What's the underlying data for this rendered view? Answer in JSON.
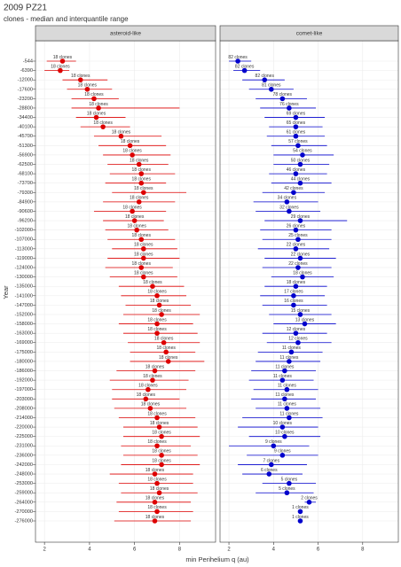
{
  "chart_data": {
    "type": "dot-range",
    "title": "2009 PZ21",
    "subtitle": "clones - median and interquantile range",
    "xlabel": "min Perihelium q (au)",
    "ylabel": "Year",
    "xlim": [
      1.6,
      9.6
    ],
    "xticks": [
      2,
      4,
      6,
      8
    ],
    "grid": true,
    "categories": [
      "-544",
      "-6390",
      "-12000",
      "-17600",
      "-23200",
      "-28800",
      "-34400",
      "-40100",
      "-45700",
      "-51300",
      "-56900",
      "-62500",
      "-68100",
      "-73700",
      "-79300",
      "-84900",
      "-90600",
      "-96200",
      "-102000",
      "-107000",
      "-113000",
      "-119000",
      "-124000",
      "-130000",
      "-135000",
      "-141000",
      "-147000",
      "-152000",
      "-158000",
      "-163000",
      "-169000",
      "-175000",
      "-180000",
      "-186000",
      "-192000",
      "-197000",
      "-203000",
      "-208000",
      "-214000",
      "-220000",
      "-225000",
      "-231000",
      "-236000",
      "-242000",
      "-248000",
      "-253000",
      "-259000",
      "-264000",
      "-270000",
      "-276000"
    ],
    "panels": [
      {
        "name": "asteroid-like",
        "color": "#dd0000",
        "median": [
          2.8,
          2.7,
          3.6,
          3.9,
          4.2,
          4.4,
          4.3,
          4.6,
          5.4,
          5.8,
          5.9,
          6.2,
          6.3,
          6.3,
          6.4,
          6.2,
          5.9,
          6.0,
          6.1,
          6.3,
          6.4,
          6.4,
          6.3,
          6.4,
          6.8,
          7.0,
          7.1,
          7.2,
          7.0,
          7.0,
          7.3,
          7.4,
          7.5,
          6.9,
          6.8,
          6.6,
          6.5,
          6.7,
          7.0,
          7.1,
          7.2,
          7.0,
          7.2,
          7.2,
          6.9,
          7.0,
          7.1,
          6.9,
          7.0,
          6.9
        ],
        "lo": [
          2.1,
          2.0,
          2.8,
          3.0,
          3.2,
          3.2,
          3.4,
          3.6,
          4.2,
          4.4,
          4.6,
          4.8,
          4.9,
          4.7,
          5.0,
          4.6,
          4.2,
          4.6,
          4.7,
          4.8,
          5.0,
          4.8,
          4.7,
          4.9,
          5.3,
          5.4,
          5.6,
          5.5,
          5.3,
          5.5,
          5.7,
          5.8,
          5.8,
          5.2,
          4.9,
          5.0,
          5.0,
          5.1,
          5.3,
          5.5,
          5.5,
          5.4,
          5.5,
          5.4,
          4.9,
          5.3,
          5.4,
          5.2,
          5.3,
          5.1
        ],
        "hi": [
          3.4,
          3.1,
          4.8,
          5.0,
          5.3,
          8.0,
          5.6,
          5.8,
          7.2,
          7.4,
          7.6,
          7.5,
          7.8,
          7.4,
          8.3,
          7.8,
          7.4,
          7.3,
          7.5,
          7.8,
          7.9,
          8.0,
          7.7,
          7.9,
          8.2,
          8.3,
          8.5,
          8.9,
          8.6,
          8.8,
          8.9,
          8.7,
          9.1,
          8.7,
          8.4,
          8.3,
          8.0,
          8.3,
          8.7,
          8.8,
          8.9,
          8.5,
          8.8,
          8.9,
          8.6,
          8.6,
          8.8,
          8.5,
          8.6,
          8.5
        ],
        "labels": [
          "18 clones",
          "18 clones",
          "18 clones",
          "18 clones",
          "18 clones",
          "18 clones",
          "18 clones",
          "18 clones",
          "18 clones",
          "18 clones",
          "18 clones",
          "18 clones",
          "18 clones",
          "18 clones",
          "18 clones",
          "18 clones",
          "18 clones",
          "18 clones",
          "18 clones",
          "18 clones",
          "18 clones",
          "18 clones",
          "18 clones",
          "18 clones",
          "18 clones",
          "18 clones",
          "18 clones",
          "18 clones",
          "18 clones",
          "18 clones",
          "18 clones",
          "18 clones",
          "18 clones",
          "18 clones",
          "18 clones",
          "18 clones",
          "18 clones",
          "18 clones",
          "18 clones",
          "18 clones",
          "18 clones",
          "18 clones",
          "18 clones",
          "18 clones",
          "18 clones",
          "18 clones",
          "18 clones",
          "18 clones",
          "18 clones",
          "18 clones"
        ]
      },
      {
        "name": "comet-like",
        "color": "#0000cc",
        "median": [
          2.4,
          2.7,
          3.6,
          3.9,
          4.4,
          4.7,
          5.0,
          5.0,
          5.0,
          5.1,
          5.3,
          5.2,
          5.0,
          5.2,
          4.9,
          4.6,
          4.7,
          5.2,
          5.0,
          5.1,
          5.0,
          5.2,
          5.1,
          5.3,
          5.0,
          4.9,
          4.9,
          5.2,
          5.4,
          5.0,
          5.1,
          4.8,
          4.7,
          4.5,
          4.4,
          4.6,
          4.5,
          4.6,
          4.7,
          4.4,
          4.5,
          4.0,
          4.4,
          3.9,
          3.8,
          4.7,
          4.6,
          5.6,
          5.2,
          5.2
        ],
        "lo": [
          2.0,
          2.2,
          2.6,
          2.9,
          3.2,
          3.4,
          3.6,
          3.8,
          3.7,
          3.9,
          4.0,
          4.0,
          3.8,
          3.9,
          3.5,
          3.1,
          3.2,
          3.6,
          3.4,
          3.5,
          3.3,
          3.6,
          3.5,
          3.9,
          3.6,
          3.4,
          3.5,
          3.8,
          4.0,
          3.5,
          3.7,
          3.3,
          3.2,
          3.0,
          2.9,
          3.1,
          3.0,
          3.2,
          2.6,
          2.4,
          2.9,
          2.0,
          2.8,
          2.4,
          2.6,
          3.5,
          3.2,
          5.4,
          5.2,
          5.2
        ],
        "hi": [
          3.0,
          3.4,
          4.5,
          4.9,
          5.5,
          5.9,
          6.3,
          6.2,
          6.3,
          6.4,
          6.7,
          6.5,
          6.4,
          6.6,
          6.3,
          6.0,
          6.1,
          7.3,
          6.6,
          6.6,
          6.5,
          6.8,
          6.6,
          6.7,
          6.4,
          6.3,
          6.4,
          6.6,
          6.8,
          6.4,
          6.6,
          6.2,
          6.1,
          5.9,
          5.8,
          6.0,
          5.9,
          6.1,
          6.2,
          6.0,
          6.1,
          5.6,
          6.0,
          5.5,
          5.3,
          5.9,
          5.8,
          5.9,
          5.2,
          5.2
        ],
        "labels": [
          "82 clones",
          "82 clones",
          "82 clones",
          "81 clones",
          "78 clones",
          "76 clones",
          "69 clones",
          "65 clones",
          "61 clones",
          "57 clones",
          "54 clones",
          "50 clones",
          "46 clones",
          "44 clones",
          "42 clones",
          "34 clones",
          "32 clones",
          "29 clones",
          "26 clones",
          "25 clones",
          "22 clones",
          "22 clones",
          "22 clones",
          "18 clones",
          "18 clones",
          "17 clones",
          "16 clones",
          "15 clones",
          "13 clones",
          "12 clones",
          "12 clones",
          "11 clones",
          "11 clones",
          "11 clones",
          "11 clones",
          "11 clones",
          "11 clones",
          "11 clones",
          "11 clones",
          "10 clones",
          "10 clones",
          "9 clones",
          "9 clones",
          "7 clones",
          "6 clones",
          "5 clones",
          "5 clones",
          "2 clones",
          "1 clones",
          "1 clones"
        ]
      }
    ]
  }
}
